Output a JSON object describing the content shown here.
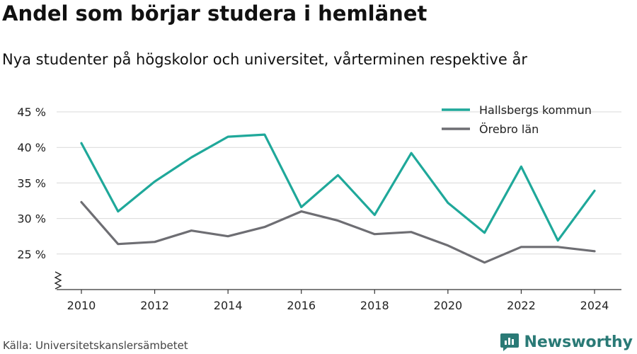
{
  "title": "Andel som börjar studera i hemlänet",
  "subtitle": "Nya studenter på högskolor och universitet, vårterminen respektive år",
  "source": "Källa: Universitetskanslersämbetet",
  "brand": {
    "name": "Newsworthy",
    "icon": "newsworthy-logo-icon",
    "color": "#2a7a76"
  },
  "chart_data": {
    "type": "line",
    "x": [
      2010,
      2011,
      2012,
      2013,
      2014,
      2015,
      2016,
      2017,
      2018,
      2019,
      2020,
      2021,
      2022,
      2023,
      2024
    ],
    "series": [
      {
        "name": "Hallsbergs kommun",
        "color": "#1fa89a",
        "values": [
          40.6,
          31.0,
          35.2,
          38.6,
          41.5,
          41.8,
          31.6,
          36.1,
          30.5,
          39.2,
          32.2,
          28.0,
          37.3,
          26.9,
          33.9
        ]
      },
      {
        "name": "Örebro län",
        "color": "#6e6e73",
        "values": [
          32.3,
          26.4,
          26.7,
          28.3,
          27.5,
          28.8,
          31.0,
          29.7,
          27.8,
          28.1,
          26.2,
          23.8,
          26.0,
          26.0,
          25.4
        ]
      }
    ],
    "xticks": [
      2010,
      2012,
      2014,
      2016,
      2018,
      2020,
      2022,
      2024
    ],
    "yticks": [
      {
        "value": 25,
        "label": "25 %"
      },
      {
        "value": 30,
        "label": "30 %"
      },
      {
        "value": 35,
        "label": "35 %"
      },
      {
        "value": 40,
        "label": "40 %"
      },
      {
        "value": 45,
        "label": "45 %"
      }
    ],
    "xlim": [
      2009.6,
      2024.6
    ],
    "ylim": [
      20,
      45
    ],
    "y_axis_break": true,
    "grid": true,
    "legend_position": "top-right",
    "xlabel": "",
    "ylabel": ""
  }
}
